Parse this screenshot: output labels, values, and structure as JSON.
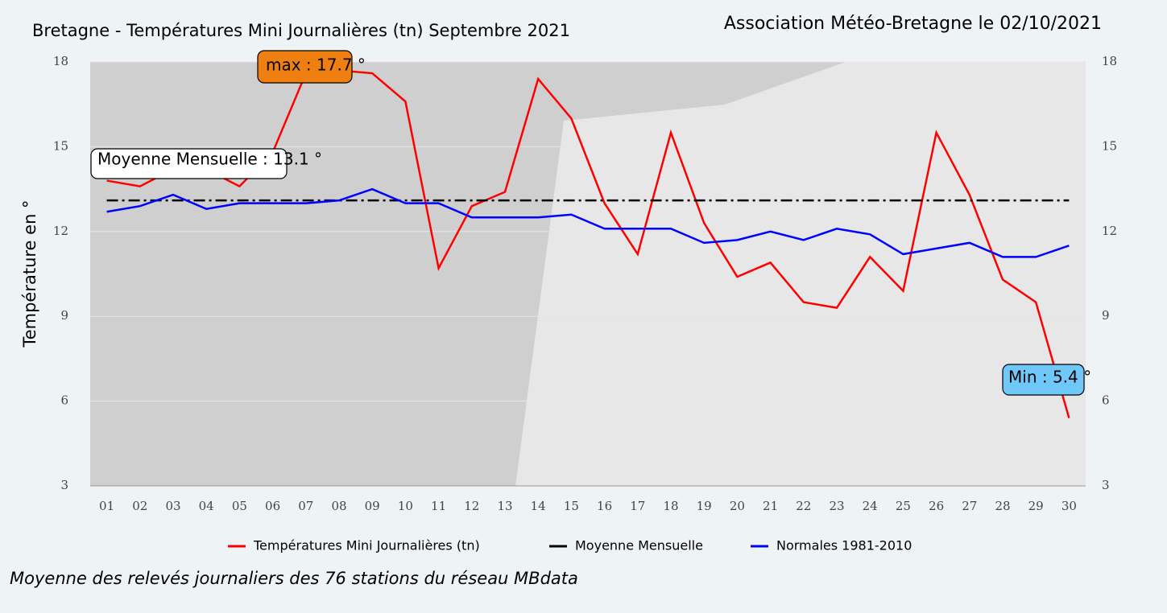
{
  "chart_data": {
    "type": "line",
    "title": "Bretagne - Températures Mini Journalières (tn) Septembre 2021",
    "subtitle": "Association Météo-Bretagne le 02/10/2021",
    "y_label": "Température en °",
    "footer": "Moyenne des relevés journaliers des 76 stations du réseau MBdata",
    "categories": [
      "01",
      "02",
      "03",
      "04",
      "05",
      "06",
      "07",
      "08",
      "09",
      "10",
      "11",
      "12",
      "13",
      "14",
      "15",
      "16",
      "17",
      "18",
      "19",
      "20",
      "21",
      "22",
      "23",
      "24",
      "25",
      "26",
      "27",
      "28",
      "29",
      "30"
    ],
    "series": [
      {
        "name": "Températures Mini Journalières (tn)",
        "color": "#ff0000",
        "dash": "none",
        "values": [
          13.8,
          13.6,
          14.2,
          14.2,
          13.6,
          14.8,
          17.6,
          17.7,
          17.6,
          16.6,
          10.7,
          12.9,
          13.4,
          17.4,
          16.0,
          13.0,
          11.2,
          15.5,
          12.3,
          10.4,
          10.9,
          9.5,
          9.3,
          11.1,
          9.9,
          15.5,
          13.3,
          10.3,
          9.5,
          5.4
        ]
      },
      {
        "name": "Moyenne Mensuelle",
        "color": "#000000",
        "dash": "14 5 3 5",
        "values": [
          13.1,
          13.1,
          13.1,
          13.1,
          13.1,
          13.1,
          13.1,
          13.1,
          13.1,
          13.1,
          13.1,
          13.1,
          13.1,
          13.1,
          13.1,
          13.1,
          13.1,
          13.1,
          13.1,
          13.1,
          13.1,
          13.1,
          13.1,
          13.1,
          13.1,
          13.1,
          13.1,
          13.1,
          13.1,
          13.1
        ]
      },
      {
        "name": "Normales 1981-2010",
        "color": "#0000ff",
        "dash": "none",
        "values": [
          12.7,
          12.9,
          13.3,
          12.8,
          13.0,
          13.0,
          13.0,
          13.1,
          13.5,
          13.0,
          13.0,
          12.5,
          12.5,
          12.5,
          12.6,
          12.1,
          12.1,
          12.1,
          11.6,
          11.7,
          12.0,
          11.7,
          12.1,
          11.9,
          11.2,
          11.4,
          11.6,
          11.1,
          11.1,
          11.5
        ]
      }
    ],
    "annotations": [
      {
        "text": "max : 17.7 °",
        "color": "#f07f12"
      },
      {
        "text": "Moyenne Mensuelle : 13.1 °",
        "color": "#ffffff"
      },
      {
        "text": "Min : 5.4 °",
        "color": "#70c8f8"
      }
    ],
    "ylim": [
      3,
      18
    ],
    "yticks": [
      3,
      6,
      9,
      12,
      15,
      18
    ],
    "grid": true
  }
}
